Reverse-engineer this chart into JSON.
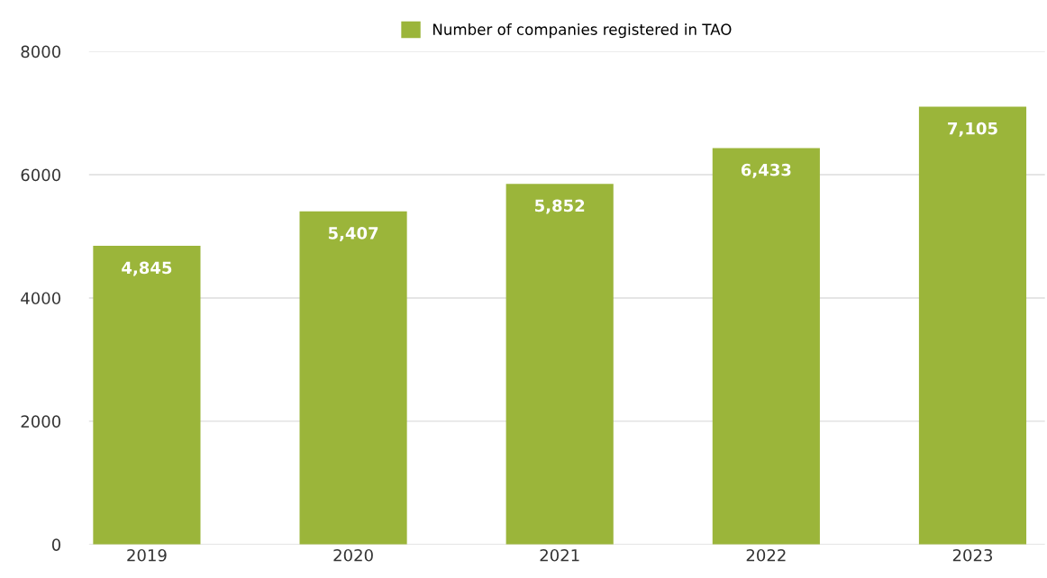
{
  "chart_data": {
    "type": "bar",
    "categories": [
      "2019",
      "2020",
      "2021",
      "2022",
      "2023"
    ],
    "series": [
      {
        "name": "Number of companies registered in TAO",
        "color": "#9bb53a",
        "values": [
          4845,
          5407,
          5852,
          6433,
          7105
        ],
        "value_labels": [
          "4,845",
          "5,407",
          "5,852",
          "6,433",
          "7,105"
        ]
      }
    ],
    "ylim": [
      0,
      8000
    ],
    "yticks": [
      0,
      2000,
      4000,
      6000,
      8000
    ],
    "grid": "y",
    "legend": "top"
  }
}
